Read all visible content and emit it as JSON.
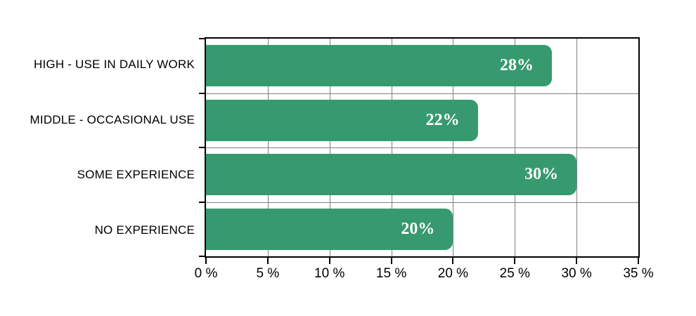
{
  "chart_data": {
    "type": "bar",
    "orientation": "horizontal",
    "title": "",
    "categories": [
      "HIGH - USE IN DAILY WORK",
      "MIDDLE - OCCASIONAL USE",
      "SOME EXPERIENCE",
      "NO EXPERIENCE"
    ],
    "values": [
      28,
      22,
      30,
      20
    ],
    "value_labels": [
      "28%",
      "22%",
      "30%",
      "20%"
    ],
    "xlim": [
      0,
      35
    ],
    "x_tick_step": 5,
    "x_tick_labels": [
      "0 %",
      "5 %",
      "10 %",
      "15 %",
      "20 %",
      "25 %",
      "30 %",
      "35 %"
    ],
    "grid": true,
    "legend": "none",
    "bar_color": "#379a6e",
    "value_text_color": "#ffffff",
    "gridline_color": "#808080",
    "axis_color": "#000000",
    "background_color": "#ffffff"
  }
}
